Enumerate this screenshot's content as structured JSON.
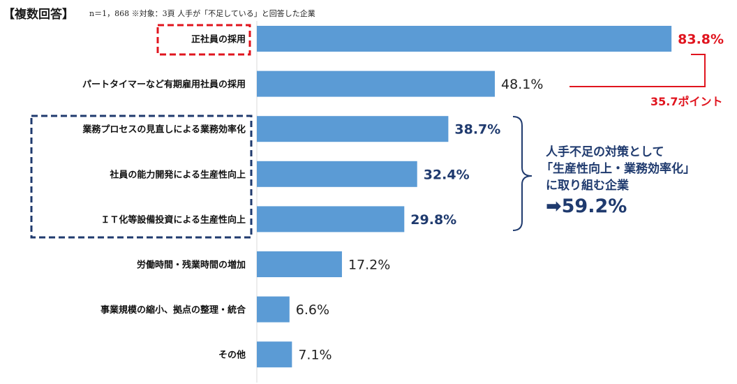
{
  "header": {
    "tag": "【複数回答】",
    "note": "n＝1，868 ※対象：3頁 人手が「不足している」と回答した企業"
  },
  "chart_data": {
    "type": "bar",
    "orientation": "horizontal",
    "categories": [
      "正社員の採用",
      "パートタイマーなど有期雇用社員の採用",
      "業務プロセスの見直しによる業務効率化",
      "社員の能力開発による生産性向上",
      "ＩＴ化等設備投資による生産性向上",
      "労働時間・残業時間の増加",
      "事業規模の縮小、拠点の整理・統合",
      "その他"
    ],
    "values": [
      83.8,
      48.1,
      38.7,
      32.4,
      29.8,
      17.2,
      6.6,
      7.1
    ],
    "value_labels": [
      "83.8%",
      "48.1%",
      "38.7%",
      "32.4%",
      "29.8%",
      "17.2%",
      "6.6%",
      "7.1%"
    ],
    "value_styles": [
      "red",
      "normal",
      "strong",
      "strong",
      "strong",
      "normal",
      "normal",
      "normal"
    ],
    "xlim": [
      0,
      100
    ],
    "bar_color": "#5b9bd5",
    "title": "",
    "xlabel": "",
    "ylabel": ""
  },
  "annotations": {
    "difference": "35.7ポイント",
    "group_line1": "人手不足の対策として",
    "group_line2": "「生産性向上・業務効率化」",
    "group_line3": "に取り組む企業",
    "group_total": "➡59.2%"
  },
  "colors": {
    "bar": "#5b9bd5",
    "highlight_red": "#e0141e",
    "highlight_navy": "#1f3a6e",
    "axis": "#d9d9d9"
  }
}
